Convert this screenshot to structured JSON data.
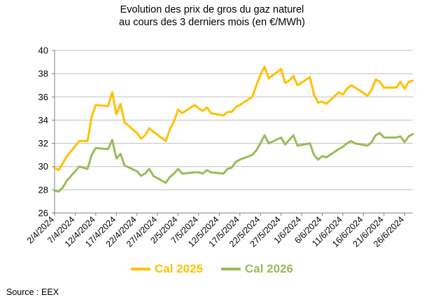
{
  "source_label": "Source : EEX",
  "chart_data": {
    "type": "line",
    "title": "Evolution des prix de gros du gaz naturel",
    "subtitle": "au cours des 3 derniers mois (en €/MWh)",
    "ylim": [
      26,
      40
    ],
    "yticks": [
      26,
      28,
      30,
      32,
      34,
      36,
      38,
      40
    ],
    "grid": true,
    "legend_position": "bottom",
    "xtick_labels": [
      "2/4/2024",
      "7/4/2024",
      "12/4/2024",
      "17/4/2024",
      "22/4/2024",
      "27/4/2024",
      "2/5/2024",
      "7/5/2024",
      "12/5/2024",
      "17/5/2024",
      "22/5/2024",
      "27/5/2024",
      "1/6/2024",
      "6/6/2024",
      "11/6/2024",
      "16/6/2024",
      "21/6/2024",
      "26/6/2024"
    ],
    "x": [
      "2024-04-02",
      "2024-04-03",
      "2024-04-04",
      "2024-04-05",
      "2024-04-08",
      "2024-04-09",
      "2024-04-10",
      "2024-04-11",
      "2024-04-12",
      "2024-04-15",
      "2024-04-16",
      "2024-04-17",
      "2024-04-18",
      "2024-04-19",
      "2024-04-22",
      "2024-04-23",
      "2024-04-24",
      "2024-04-25",
      "2024-04-26",
      "2024-04-29",
      "2024-04-30",
      "2024-05-01",
      "2024-05-02",
      "2024-05-03",
      "2024-05-06",
      "2024-05-07",
      "2024-05-08",
      "2024-05-09",
      "2024-05-10",
      "2024-05-13",
      "2024-05-14",
      "2024-05-15",
      "2024-05-16",
      "2024-05-17",
      "2024-05-20",
      "2024-05-21",
      "2024-05-22",
      "2024-05-23",
      "2024-05-24",
      "2024-05-27",
      "2024-05-28",
      "2024-05-29",
      "2024-05-30",
      "2024-05-31",
      "2024-06-03",
      "2024-06-04",
      "2024-06-05",
      "2024-06-06",
      "2024-06-07",
      "2024-06-10",
      "2024-06-11",
      "2024-06-12",
      "2024-06-13",
      "2024-06-14",
      "2024-06-17",
      "2024-06-18",
      "2024-06-19",
      "2024-06-20",
      "2024-06-21",
      "2024-06-24",
      "2024-06-25",
      "2024-06-26",
      "2024-06-27",
      "2024-06-28"
    ],
    "series": [
      {
        "name": "Cal 2025",
        "color": "#ffc000",
        "values": [
          29.9,
          29.7,
          30.3,
          30.9,
          32.2,
          32.2,
          32.2,
          34.3,
          35.3,
          35.2,
          36.4,
          34.5,
          35.4,
          33.8,
          32.9,
          32.4,
          32.7,
          33.3,
          33.0,
          32.2,
          33.2,
          33.9,
          34.9,
          34.6,
          35.3,
          35.0,
          34.8,
          35.1,
          34.6,
          34.4,
          34.7,
          34.7,
          35.1,
          35.3,
          36.0,
          37.0,
          37.9,
          38.6,
          37.6,
          38.4,
          37.2,
          37.4,
          37.8,
          37.0,
          37.7,
          36.2,
          35.5,
          35.6,
          35.4,
          36.4,
          36.2,
          36.7,
          37.0,
          36.8,
          36.1,
          36.6,
          37.5,
          37.3,
          36.8,
          36.8,
          37.3,
          36.7,
          37.3,
          37.4
        ]
      },
      {
        "name": "Cal 2026",
        "color": "#9bbb59",
        "values": [
          27.9,
          27.85,
          28.2,
          28.8,
          30.0,
          29.9,
          29.8,
          31.0,
          31.6,
          31.5,
          32.3,
          30.7,
          31.1,
          30.1,
          29.6,
          29.2,
          29.4,
          29.8,
          29.2,
          28.6,
          29.1,
          29.4,
          29.8,
          29.4,
          29.5,
          29.5,
          29.4,
          29.7,
          29.5,
          29.4,
          29.8,
          29.9,
          30.4,
          30.6,
          31.0,
          31.4,
          32.0,
          32.7,
          32.0,
          32.5,
          31.9,
          32.3,
          32.7,
          31.8,
          32.0,
          31.0,
          30.6,
          30.9,
          30.8,
          31.5,
          31.7,
          32.0,
          32.2,
          32.0,
          31.8,
          32.1,
          32.7,
          32.9,
          32.5,
          32.5,
          32.6,
          32.1,
          32.6,
          32.8
        ]
      }
    ]
  }
}
